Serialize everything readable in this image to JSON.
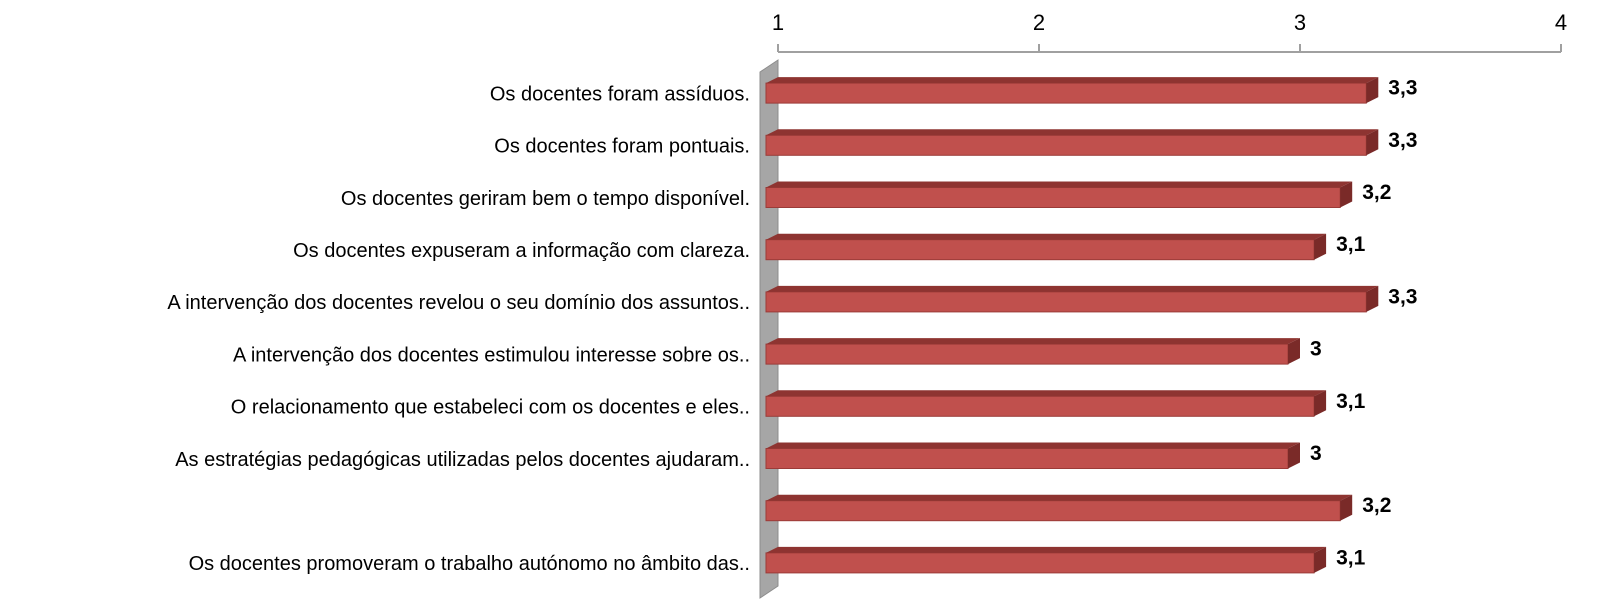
{
  "chart_data": {
    "type": "bar",
    "orientation": "horizontal",
    "categories": [
      "Os docentes foram assíduos.",
      "Os docentes foram pontuais.",
      "Os docentes geriram bem o tempo disponível.",
      "Os docentes expuseram a informação com clareza.",
      "A intervenção dos docentes revelou o seu domínio dos assuntos..",
      "A intervenção dos docentes estimulou interesse sobre os..",
      "O relacionamento que estabeleci com os docentes e eles..",
      "As estratégias pedagógicas utilizadas pelos docentes ajudaram..",
      null,
      "Os docentes promoveram o trabalho autónomo no âmbito das.."
    ],
    "values": [
      3.3,
      3.3,
      3.2,
      3.1,
      3.3,
      3,
      3.1,
      3,
      3.2,
      3.1
    ],
    "value_labels": [
      "3,3",
      "3,3",
      "3,2",
      "3,1",
      "3,3",
      "3",
      "3,1",
      "3",
      "3,2",
      "3,1"
    ],
    "color": "#c0504d",
    "xlim": [
      1,
      4
    ],
    "xticks": [
      1,
      2,
      3,
      4
    ]
  }
}
